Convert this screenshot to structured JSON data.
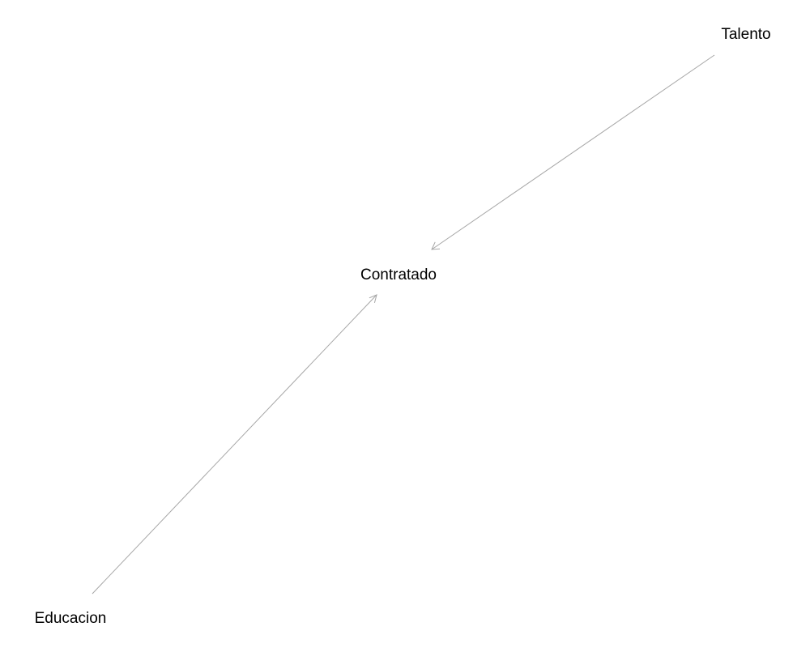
{
  "nodes": {
    "talento": "Talento",
    "contratado": "Contratado",
    "educacion": "Educacion"
  },
  "edges": [
    {
      "from": "Talento",
      "to": "Contratado"
    },
    {
      "from": "Educacion",
      "to": "Contratado"
    }
  ],
  "colors": {
    "edge": "#a6a6a6",
    "label": "#000000",
    "background": "#ffffff"
  }
}
